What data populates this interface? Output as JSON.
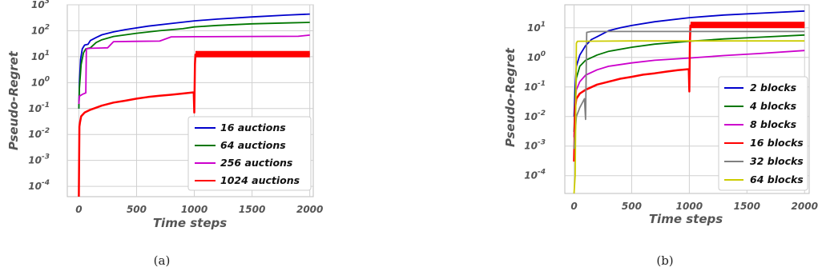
{
  "chart_data": [
    {
      "type": "line",
      "caption": "(a)",
      "xlabel": "Time steps",
      "ylabel": "Pseudo-Regret",
      "yscale": "log",
      "xlim": [
        -100,
        2030
      ],
      "ylim": [
        4e-05,
        1000
      ],
      "xticks": [
        0,
        500,
        1000,
        1500,
        2000
      ],
      "xtick_labels": [
        "0",
        "500",
        "1000",
        "1500",
        "2000"
      ],
      "ytick_exponents": [
        -4,
        -3,
        -2,
        -1,
        0,
        1,
        2,
        3
      ],
      "grid": true,
      "legend_position": "bottom-right",
      "series": [
        {
          "name": "16 auctions",
          "color": "#0000cc",
          "x": [
            0,
            5,
            15,
            30,
            50,
            80,
            100,
            150,
            200,
            300,
            400,
            600,
            800,
            1000,
            1200,
            1500,
            1800,
            2000
          ],
          "y": [
            0.1,
            1,
            8,
            20,
            28,
            30,
            42,
            55,
            70,
            90,
            110,
            150,
            190,
            240,
            280,
            340,
            400,
            440
          ]
        },
        {
          "name": "64 auctions",
          "color": "#007700",
          "x": [
            0,
            5,
            20,
            40,
            60,
            100,
            150,
            200,
            300,
            500,
            700,
            900,
            1000,
            1200,
            1500,
            1800,
            2000
          ],
          "y": [
            0.1,
            0.6,
            5,
            14,
            20,
            22,
            35,
            45,
            60,
            80,
            100,
            120,
            140,
            160,
            185,
            200,
            210
          ]
        },
        {
          "name": "256 auctions",
          "color": "#cc00cc",
          "x": [
            0,
            5,
            30,
            60,
            65,
            100,
            250,
            300,
            500,
            700,
            800,
            1000,
            1500,
            1900,
            2000
          ],
          "y": [
            0.15,
            0.3,
            0.35,
            0.4,
            20,
            21,
            22,
            38,
            39,
            40,
            58,
            59,
            60,
            61,
            68
          ]
        },
        {
          "name": "1024 auctions",
          "color": "#ff0000",
          "x": [
            0,
            5,
            10,
            20,
            50,
            100,
            200,
            300,
            400,
            500,
            600,
            700,
            800,
            900,
            995,
            1000,
            1005,
            1010,
            1100,
            1500,
            2000
          ],
          "y": [
            4e-05,
            0.02,
            0.03,
            0.05,
            0.07,
            0.09,
            0.13,
            0.17,
            0.2,
            0.24,
            0.28,
            0.31,
            0.34,
            0.38,
            0.42,
            0.07,
            5,
            12,
            12.5,
            12.5,
            12.5
          ]
        }
      ]
    },
    {
      "type": "line",
      "caption": "(b)",
      "xlabel": "Time steps",
      "ylabel": "Pseudo-Regret",
      "yscale": "log",
      "xlim": [
        -80,
        2040
      ],
      "ylim": [
        2.5e-05,
        60
      ],
      "xticks": [
        0,
        500,
        1000,
        1500,
        2000
      ],
      "xtick_labels": [
        "0",
        "500",
        "1000",
        "1500",
        "2000"
      ],
      "yticks": [
        0.0001,
        0.001,
        0.01,
        0.1,
        1,
        10
      ],
      "ytick_labels": [
        "10^-4",
        "10^-3",
        "10^-2",
        "10^-1",
        "10^0",
        "10^1"
      ],
      "grid": true,
      "legend_position": "bottom-right",
      "series": [
        {
          "name": "2 blocks",
          "color": "#0000cc",
          "x": [
            0,
            10,
            20,
            50,
            100,
            150,
            200,
            300,
            400,
            500,
            700,
            1000,
            1300,
            1600,
            2000
          ],
          "y": [
            0.01,
            0.1,
            0.5,
            1.2,
            2.5,
            4,
            5,
            8,
            10,
            12,
            16,
            22,
            27,
            31,
            37
          ]
        },
        {
          "name": "4 blocks",
          "color": "#007700",
          "x": [
            0,
            10,
            20,
            50,
            100,
            200,
            300,
            500,
            700,
            1000,
            1300,
            1600,
            2000
          ],
          "y": [
            0.003,
            0.05,
            0.2,
            0.5,
            0.8,
            1.2,
            1.6,
            2.2,
            2.8,
            3.5,
            4.2,
            4.8,
            5.7
          ]
        },
        {
          "name": "8 blocks",
          "color": "#cc00cc",
          "x": [
            0,
            10,
            20,
            50,
            100,
            200,
            300,
            500,
            700,
            1000,
            1300,
            1600,
            2000
          ],
          "y": [
            0.002,
            0.03,
            0.08,
            0.15,
            0.25,
            0.38,
            0.5,
            0.65,
            0.8,
            0.95,
            1.15,
            1.35,
            1.7
          ]
        },
        {
          "name": "16 blocks",
          "color": "#ff0000",
          "x": [
            0,
            10,
            20,
            50,
            100,
            200,
            300,
            400,
            500,
            600,
            700,
            800,
            900,
            995,
            1000,
            1005,
            1010,
            1100,
            1500,
            2000
          ],
          "y": [
            0.0003,
            0.02,
            0.04,
            0.06,
            0.08,
            0.12,
            0.15,
            0.19,
            0.22,
            0.26,
            0.29,
            0.33,
            0.37,
            0.4,
            0.07,
            3,
            12,
            12.5,
            12.5,
            12.5
          ]
        },
        {
          "name": "32 blocks",
          "color": "#808080",
          "x": [
            0,
            20,
            50,
            90,
            100,
            110,
            150,
            500,
            1000,
            1500,
            2000
          ],
          "y": [
            0.0008,
            0.01,
            0.02,
            0.04,
            0.008,
            7,
            7.5,
            7.5,
            7.5,
            7.5,
            7.5
          ]
        },
        {
          "name": "64 blocks",
          "color": "#cccc00",
          "x": [
            0,
            10,
            20,
            30,
            500,
            1000,
            1500,
            2000
          ],
          "y": [
            2.5e-05,
            0.0001,
            3,
            3.5,
            3.6,
            3.6,
            3.6,
            3.6
          ]
        }
      ]
    }
  ]
}
